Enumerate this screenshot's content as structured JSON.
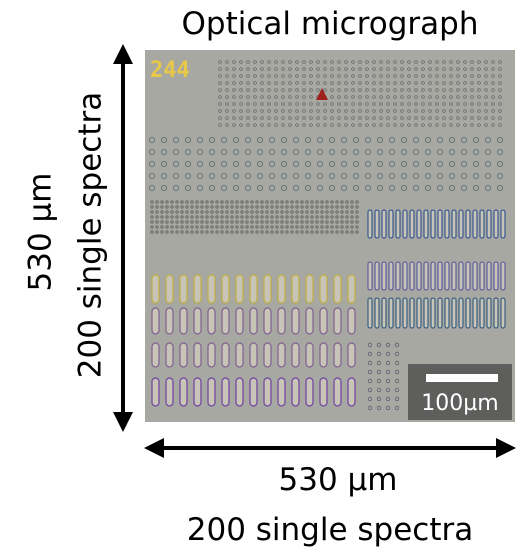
{
  "title": "Optical micrograph",
  "image": {
    "label": "244",
    "scale_bar": "100µm"
  },
  "left_axis": {
    "size": "530 µm",
    "spectra": "200 single spectra"
  },
  "bottom_axis": {
    "size": "530 µm",
    "spectra": "200 single spectra"
  }
}
